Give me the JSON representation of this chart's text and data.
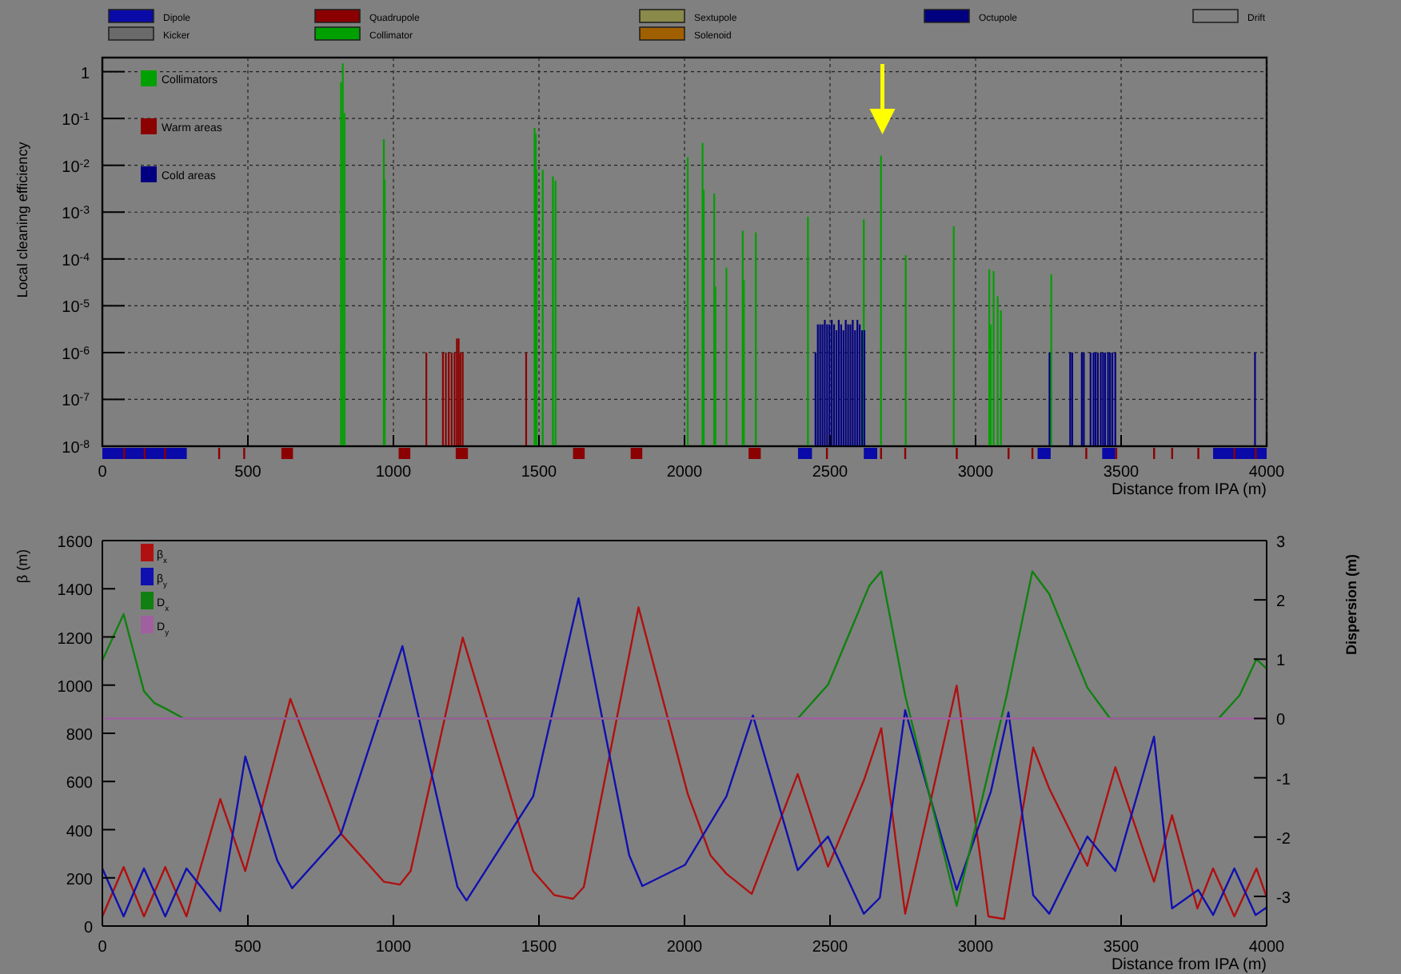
{
  "chart_data": [
    {
      "type": "other",
      "categories": [
        "Dipole",
        "Quadrupole",
        "Sextupole",
        "Octupole",
        "Drift",
        "Kicker",
        "Collimator",
        "Solenoid"
      ],
      "colors": [
        "#0a0aa8",
        "#8b0000",
        "#8a8a4a",
        "#000080",
        "#808080",
        "#6a6a6a",
        "#00a000",
        "#a06000"
      ]
    },
    {
      "type": "bar",
      "xlabel": "Distance from IPA (m)",
      "ylabel": "Local cleaning efficiency",
      "log": "y",
      "grid": true,
      "legend": "top left",
      "xlim": [
        0,
        4000
      ],
      "xticks": [
        0,
        500,
        1000,
        1500,
        2000,
        2500,
        3000,
        3500,
        4000
      ],
      "ylim": [
        1e-08,
        2
      ],
      "yticks": [
        1,
        {
          "value": 0.1,
          "label": "10$^{-1}$"
        },
        {
          "value": 0.01,
          "label": "10$^{-2}$"
        },
        {
          "value": 0.001,
          "label": "10$^{-3}$"
        },
        {
          "value": 0.0001,
          "label": "10$^{-4}$"
        },
        {
          "value": 1e-05,
          "label": "10$^{-5}$"
        },
        {
          "value": 1e-06,
          "label": "10$^{-6}$"
        },
        {
          "value": 1e-07,
          "label": "10$^{-7}$"
        },
        {
          "value": 1e-08,
          "label": "10$^{-8}$"
        }
      ],
      "series": [
        {
          "name": "Collimators",
          "color": "#00a000",
          "x": [
            820,
            826,
            832,
            967,
            970,
            1485,
            1489,
            1492,
            1513,
            1548,
            1557,
            2011,
            2062,
            2066,
            2102,
            2106,
            2144,
            2200,
            2204,
            2245,
            2424,
            2616,
            2675,
            2760,
            2925,
            3047,
            3052,
            3062,
            3076,
            3087,
            3260
          ],
          "values": [
            0.6,
            1.5,
            0.13,
            0.036,
            0.005,
            0.063,
            0.047,
            0.008,
            0.008,
            0.0058,
            0.0047,
            0.015,
            0.03,
            0.003,
            0.0025,
            2.6e-05,
            6.5e-05,
            0.0004,
            3.5e-05,
            0.00037,
            0.0008,
            0.0007,
            0.016,
            0.00012,
            0.0005,
            6e-05,
            4e-06,
            5.5e-05,
            1.6e-05,
            8e-06,
            4.7e-05
          ]
        },
        {
          "name": "Warm areas",
          "color": "#8b0000",
          "x": [
            1113,
            1170,
            1180,
            1190,
            1200,
            1210,
            1218,
            1224,
            1230,
            1238,
            1456
          ],
          "values": [
            1e-06,
            1e-06,
            1e-06,
            1e-06,
            1e-06,
            1e-06,
            2e-06,
            2e-06,
            1e-06,
            1e-06,
            1e-06
          ]
        },
        {
          "name": "Cold areas",
          "color": "#000080",
          "x": [
            2450,
            2458,
            2466,
            2474,
            2482,
            2490,
            2498,
            2506,
            2514,
            2522,
            2530,
            2538,
            2546,
            2554,
            2562,
            2570,
            2578,
            2586,
            2594,
            2602,
            2610,
            2618,
            3254,
            3325,
            3332,
            3365,
            3372,
            3395,
            3405,
            3412,
            3420,
            3430,
            3438,
            3445,
            3455,
            3462,
            3470,
            3480,
            3960
          ],
          "values": [
            1e-06,
            4e-06,
            4e-06,
            4e-06,
            5e-06,
            4e-06,
            4e-06,
            5e-06,
            4e-06,
            3e-06,
            5e-06,
            4e-06,
            3e-06,
            5e-06,
            4e-06,
            4e-06,
            5e-06,
            3e-06,
            5e-06,
            4e-06,
            3e-06,
            3e-06,
            1e-06,
            1e-06,
            1e-06,
            1e-06,
            1e-06,
            1e-06,
            1e-06,
            1e-06,
            1e-06,
            1e-06,
            1e-06,
            1e-06,
            1e-06,
            1e-06,
            1e-06,
            1e-06,
            1e-06
          ]
        }
      ]
    },
    {
      "type": "line",
      "xlabel": "Distance from IPA (m)",
      "ylabel": "β (m)",
      "y2label": "Dispersion (m)",
      "legend": "top left",
      "xlim": [
        0,
        4000
      ],
      "xticks": [
        0,
        500,
        1000,
        1500,
        2000,
        2500,
        3000,
        3500,
        4000
      ],
      "ylim": [
        0,
        1600
      ],
      "yticks": [
        0,
        200,
        400,
        600,
        800,
        1000,
        1200,
        1400,
        1600
      ],
      "y2lim": [
        -3.5,
        3
      ],
      "y2ticks": [
        -3,
        -2,
        -1,
        0,
        1,
        2,
        3
      ],
      "series": [
        {
          "name": "β$_{x}$",
          "color": "#b01010",
          "x": [
            0,
            73,
            143,
            216,
            289,
            405,
            491,
            646,
            820,
            967,
            1022,
            1059,
            1238,
            1480,
            1553,
            1617,
            1654,
            1842,
            2011,
            2089,
            2144,
            2231,
            2389,
            2493,
            2616,
            2676,
            2758,
            2935,
            3044,
            3098,
            3198,
            3253,
            3384,
            3480,
            3613,
            3675,
            3762,
            3816,
            3889,
            3965,
            4000
          ],
          "values": [
            40,
            245,
            40,
            245,
            40,
            527,
            228,
            943,
            383,
            184,
            172,
            228,
            1197,
            228,
            128,
            113,
            162,
            1323,
            549,
            294,
            217,
            133,
            631,
            246,
            604,
            821,
            51,
            998,
            40,
            29,
            741,
            571,
            250,
            659,
            184,
            460,
            73,
            239,
            40,
            239,
            120
          ]
        },
        {
          "name": "β$_{y}$",
          "color": "#1010b0",
          "x": [
            0,
            73,
            143,
            216,
            289,
            405,
            491,
            601,
            652,
            820,
            1031,
            1220,
            1251,
            1480,
            1636,
            1810,
            1855,
            2002,
            2144,
            2235,
            2389,
            2493,
            2616,
            2671,
            2758,
            2935,
            3053,
            3113,
            3198,
            3253,
            3384,
            3480,
            3613,
            3675,
            3765,
            3816,
            3889,
            3962,
            4000
          ],
          "values": [
            239,
            40,
            239,
            40,
            239,
            62,
            704,
            272,
            157,
            383,
            1162,
            162,
            106,
            538,
            1361,
            294,
            166,
            254,
            538,
            874,
            232,
            372,
            51,
            117,
            896,
            150,
            560,
            887,
            128,
            51,
            372,
            228,
            786,
            73,
            150,
            46,
            239,
            46,
            77
          ]
        },
        {
          "name": "D$_{x}$",
          "color": "#108010",
          "axis": "y2",
          "x": [
            0,
            73,
            143,
            179,
            216,
            280,
            2389,
            2493,
            2635,
            2676,
            2758,
            2935,
            3107,
            3195,
            3253,
            3384,
            3462,
            3835,
            3907,
            3965,
            4000
          ],
          "values": [
            0.98,
            1.76,
            0.46,
            0.26,
            0.17,
            0,
            0,
            0.57,
            2.24,
            2.48,
            0.39,
            -3.16,
            0.39,
            2.48,
            2.1,
            0.52,
            0,
            0,
            0.39,
            1,
            0.84
          ]
        },
        {
          "name": "D$_{y}$",
          "color": "#a060a0",
          "axis": "y2",
          "x": [
            0,
            4000
          ],
          "values": [
            0,
            0
          ]
        }
      ]
    }
  ]
}
